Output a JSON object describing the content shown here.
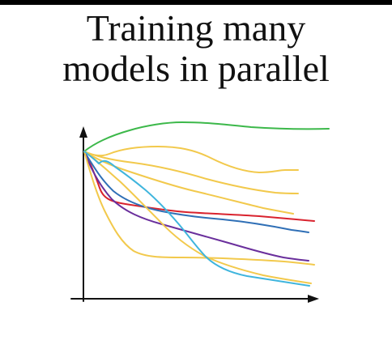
{
  "slide": {
    "title_line1": "Training many",
    "title_line2": "models in parallel"
  },
  "colors": {
    "background": "#ffffff",
    "text": "#111111",
    "axes": "#111111"
  },
  "curves": [
    {
      "name": "green-curve",
      "color": "#3cb84a"
    },
    {
      "name": "yellow-curve-top",
      "color": "#f2c94c"
    },
    {
      "name": "yellow-curve-2",
      "color": "#f2c94c"
    },
    {
      "name": "yellow-curve-3",
      "color": "#f2c94c"
    },
    {
      "name": "red-curve",
      "color": "#d9232e"
    },
    {
      "name": "blue-curve",
      "color": "#2f6fb6"
    },
    {
      "name": "purple-curve",
      "color": "#6a2f9c"
    },
    {
      "name": "yellow-curve-low",
      "color": "#f2c94c"
    },
    {
      "name": "yellow-curve-bottom",
      "color": "#f2c94c"
    },
    {
      "name": "cyan-curve",
      "color": "#3fb5dd"
    }
  ]
}
